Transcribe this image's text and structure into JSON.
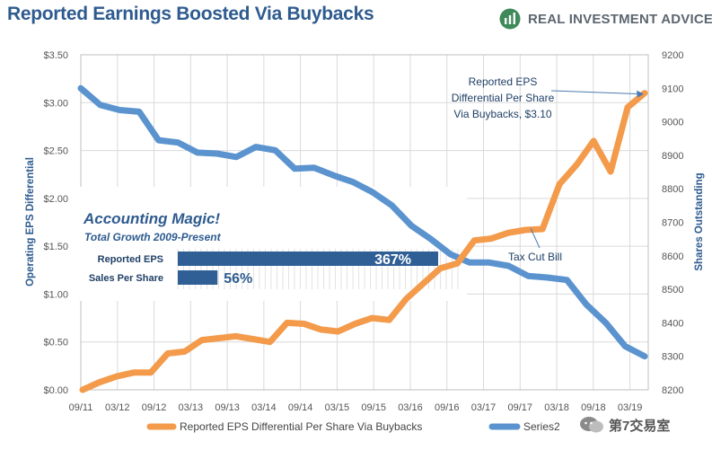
{
  "title": "Reported Earnings Boosted Via Buybacks",
  "brand": {
    "name": "REAL INVESTMENT ADVICE",
    "logo_icon": "chart-logo-icon"
  },
  "watermark": {
    "text": "第7交易室",
    "icon": "chat-bubble-icon"
  },
  "colors": {
    "eps": "#f39a4b",
    "shares": "#5b93cf",
    "title": "#2e5b8f",
    "grid": "#d9d9d9",
    "bar": "#2f5f95"
  },
  "chart_data": {
    "type": "line",
    "x_labels": [
      "09/11",
      "03/12",
      "09/12",
      "03/13",
      "09/13",
      "03/14",
      "09/14",
      "03/15",
      "09/15",
      "03/16",
      "09/16",
      "03/17",
      "09/17",
      "03/18",
      "09/18",
      "03/19"
    ],
    "y_left": {
      "label": "Operating EPS Differential",
      "range": [
        0,
        3.5
      ],
      "ticks": [
        "$0.00",
        "$0.50",
        "$1.00",
        "$1.50",
        "$2.00",
        "$2.50",
        "$3.00",
        "$3.50"
      ]
    },
    "y_right": {
      "label": "Shares Outstanding",
      "range": [
        8200,
        9200
      ],
      "ticks": [
        "8200",
        "8300",
        "8400",
        "8500",
        "8600",
        "8700",
        "8800",
        "8900",
        "9000",
        "9100",
        "9200"
      ]
    },
    "grid": true,
    "legend_position": "bottom",
    "series": [
      {
        "name": "Reported EPS Differential Per Share Via Buybacks",
        "axis": "left",
        "values": [
          0.0,
          0.08,
          0.14,
          0.18,
          0.18,
          0.38,
          0.4,
          0.52,
          0.54,
          0.56,
          0.53,
          0.5,
          0.7,
          0.69,
          0.63,
          0.61,
          0.69,
          0.75,
          0.73,
          0.95,
          1.11,
          1.27,
          1.32,
          1.56,
          1.58,
          1.64,
          1.67,
          1.68,
          2.15,
          2.35,
          2.6,
          2.28,
          2.95,
          3.1
        ]
      },
      {
        "name": "Series2",
        "axis": "right",
        "values": [
          9100,
          9050,
          9035,
          9030,
          8945,
          8938,
          8908,
          8905,
          8895,
          8925,
          8915,
          8860,
          8863,
          8840,
          8820,
          8790,
          8750,
          8690,
          8650,
          8605,
          8580,
          8580,
          8570,
          8540,
          8535,
          8528,
          8455,
          8400,
          8330,
          8300
        ]
      }
    ],
    "annotations": [
      {
        "text": [
          "Reported EPS",
          "Differential Per Share",
          "Via Buybacks,  $3.10"
        ]
      },
      {
        "text": [
          "Tax Cut Bill"
        ]
      }
    ],
    "inset": {
      "title": "Accounting Magic!",
      "subtitle": "Total Growth 2009-Present",
      "bars": [
        {
          "label": "Reported EPS",
          "value": 367,
          "display": "367%"
        },
        {
          "label": "Sales Per Share",
          "value": 56,
          "display": "56%"
        }
      ]
    }
  }
}
